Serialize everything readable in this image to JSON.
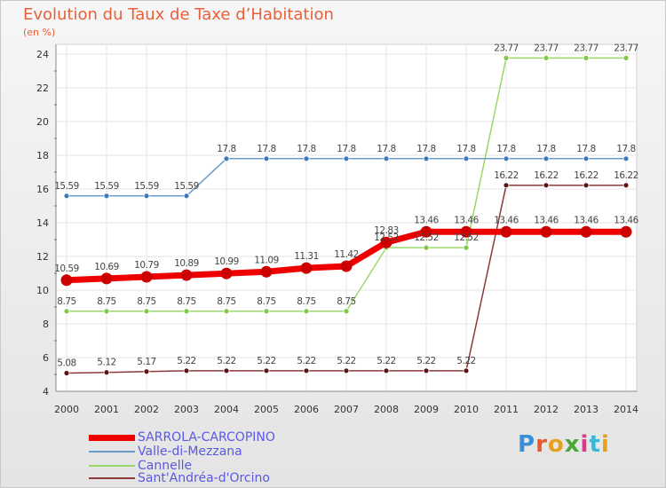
{
  "title": "Evolution du Taux de Taxe d’Habitation",
  "subtitle": "(en %)",
  "logo": {
    "text": "Proxiti",
    "colors": [
      "#3a8fd8",
      "#e85a2a",
      "#e8a020",
      "#4aa83a",
      "#d83a8a",
      "#3ab8d8",
      "#e8a020"
    ]
  },
  "chart_data": {
    "type": "line",
    "title": "Evolution du Taux de Taxe d’Habitation",
    "ylabel": "(en %)",
    "xlabel": "",
    "ylim": [
      4,
      24
    ],
    "yticks": [
      4,
      6,
      8,
      10,
      12,
      14,
      16,
      18,
      20,
      22,
      24
    ],
    "x": [
      2000,
      2001,
      2002,
      2003,
      2004,
      2005,
      2006,
      2007,
      2008,
      2009,
      2010,
      2011,
      2012,
      2013,
      2014
    ],
    "series": [
      {
        "name": "SARROLA-CARCOPINO",
        "color": "#ee0000",
        "markerColor": "#cc0000",
        "values": [
          10.59,
          10.69,
          10.79,
          10.89,
          10.99,
          11.09,
          11.31,
          11.42,
          12.83,
          13.46,
          13.46,
          13.46,
          13.46,
          13.46,
          13.46
        ],
        "labels": [
          "10.59",
          "10.69",
          "10.79",
          "10.89",
          "10.99",
          "11.09",
          "11.31",
          "11.42",
          "12.83",
          "13.46",
          "13.46",
          "13.46",
          "13.46",
          "13.46",
          "13.46"
        ]
      },
      {
        "name": "Valle-di-Mezzana",
        "color": "#6a9cc8",
        "markerColor": "#3a7ab8",
        "values": [
          15.59,
          15.59,
          15.59,
          15.59,
          17.8,
          17.8,
          17.8,
          17.8,
          17.8,
          17.8,
          17.8,
          17.8,
          17.8,
          17.8,
          17.8
        ],
        "labels": [
          "15.59",
          "15.59",
          "15.59",
          "15.59",
          "17.8",
          "17.8",
          "17.8",
          "17.8",
          "17.8",
          "17.8",
          "17.8",
          "17.8",
          "17.8",
          "17.8",
          "17.8"
        ]
      },
      {
        "name": "Cannelle",
        "color": "#9ad86a",
        "markerColor": "#7ec84a",
        "values": [
          8.75,
          8.75,
          8.75,
          8.75,
          8.75,
          8.75,
          8.75,
          8.75,
          12.52,
          12.52,
          12.52,
          23.77,
          23.77,
          23.77,
          23.77
        ],
        "labels": [
          "8.75",
          "8.75",
          "8.75",
          "8.75",
          "8.75",
          "8.75",
          "8.75",
          "8.75",
          "12.52",
          "12.52",
          "12.52",
          "23.77",
          "23.77",
          "23.77",
          "23.77"
        ]
      },
      {
        "name": "Sant'Andréa-d'Orcino",
        "color": "#8a3a3a",
        "markerColor": "#5a1414",
        "values": [
          5.08,
          5.12,
          5.17,
          5.22,
          5.22,
          5.22,
          5.22,
          5.22,
          5.22,
          5.22,
          5.22,
          16.22,
          16.22,
          16.22,
          16.22
        ],
        "labels": [
          "5.08",
          "5.12",
          "5.17",
          "5.22",
          "5.22",
          "5.22",
          "5.22",
          "5.22",
          "5.22",
          "5.22",
          "5.22",
          "16.22",
          "16.22",
          "16.22",
          "16.22"
        ]
      }
    ]
  }
}
